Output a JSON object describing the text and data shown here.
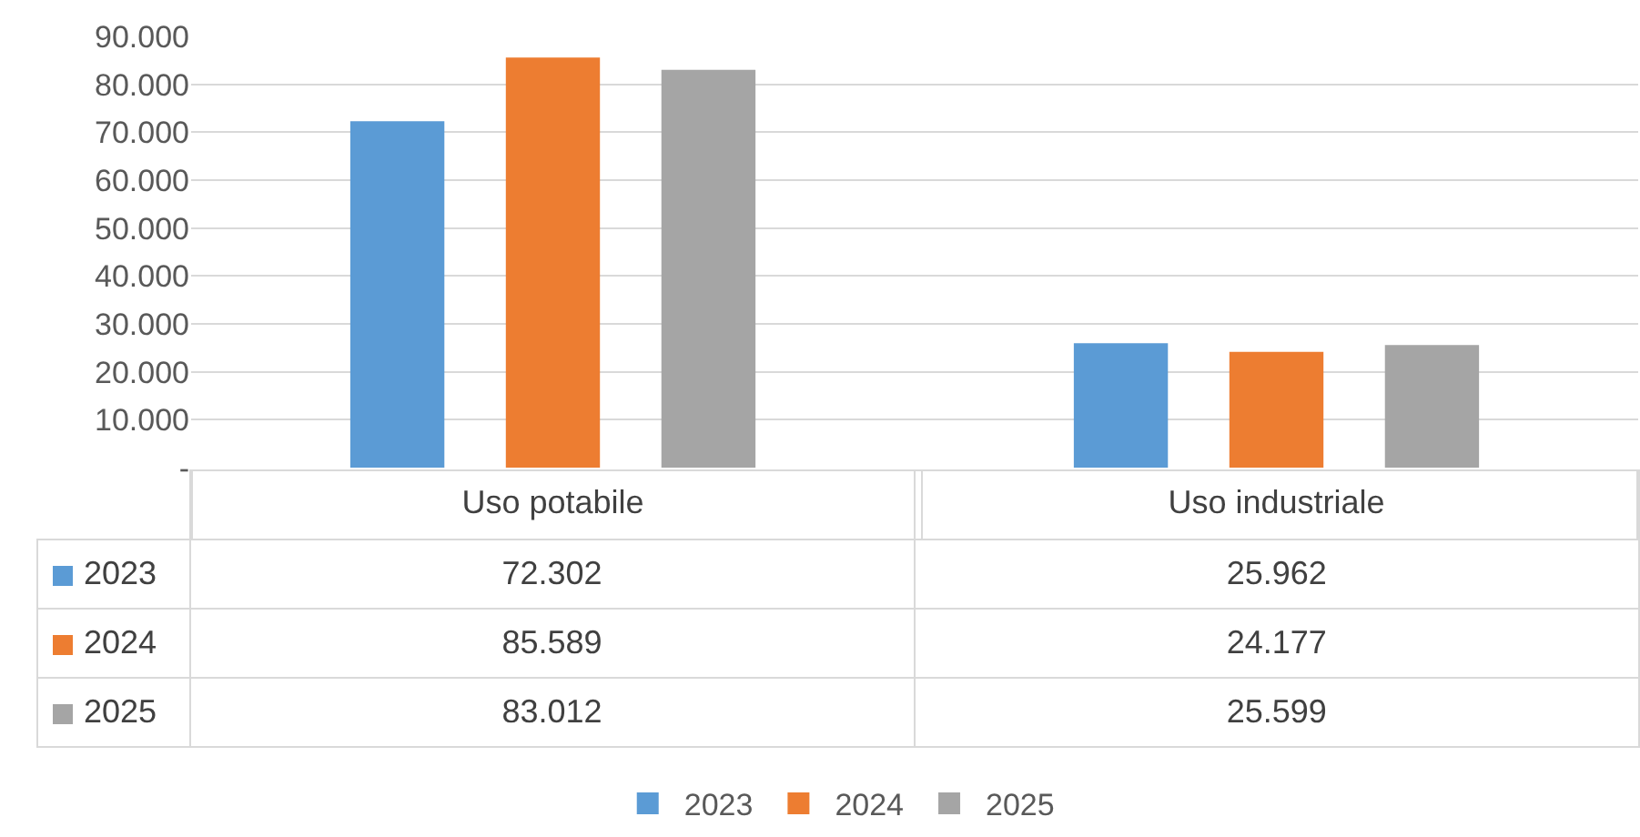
{
  "chart_data": {
    "type": "bar",
    "categories": [
      "Uso potabile",
      "Uso industriale"
    ],
    "series": [
      {
        "name": "2023",
        "color": "#5b9bd5",
        "values": [
          72302,
          25962
        ],
        "value_labels": [
          "72.302",
          "25.962"
        ]
      },
      {
        "name": "2024",
        "color": "#ed7d31",
        "values": [
          85589,
          24177
        ],
        "value_labels": [
          "85.589",
          "24.177"
        ]
      },
      {
        "name": "2025",
        "color": "#a5a5a5",
        "values": [
          83012,
          25599
        ],
        "value_labels": [
          "83.012",
          "25.599"
        ]
      }
    ],
    "ylim": [
      0,
      90000
    ],
    "yticks": [
      {
        "value": 0,
        "label": "-"
      },
      {
        "value": 10000,
        "label": "10.000"
      },
      {
        "value": 20000,
        "label": "20.000"
      },
      {
        "value": 30000,
        "label": "30.000"
      },
      {
        "value": 40000,
        "label": "40.000"
      },
      {
        "value": 50000,
        "label": "50.000"
      },
      {
        "value": 60000,
        "label": "60.000"
      },
      {
        "value": 70000,
        "label": "70.000"
      },
      {
        "value": 80000,
        "label": "80.000"
      },
      {
        "value": 90000,
        "label": "90.000"
      }
    ],
    "grid": "y",
    "legend": "bottom"
  }
}
